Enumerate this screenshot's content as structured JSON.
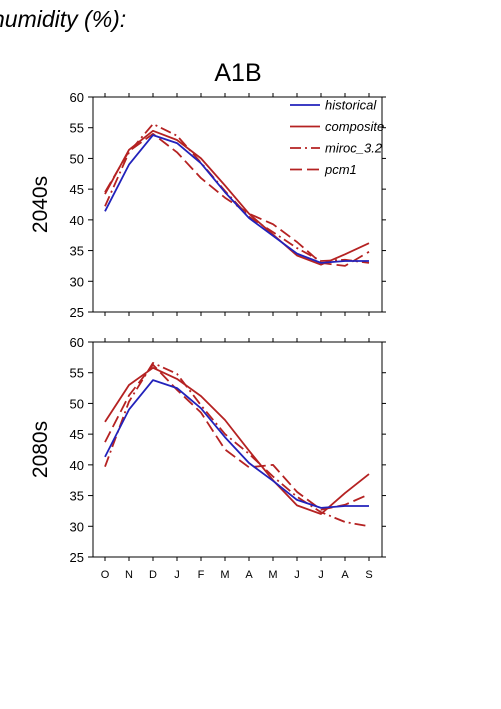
{
  "heading": "humidity (%):",
  "scenario": "A1B",
  "colors": {
    "historical": "#2222bb",
    "model": "#b52222",
    "axis": "#000000"
  },
  "chart_data": [
    {
      "type": "line",
      "panel_label": "2040s",
      "categories": [
        "O",
        "N",
        "D",
        "J",
        "F",
        "M",
        "A",
        "M",
        "J",
        "J",
        "A",
        "S"
      ],
      "ylim": [
        25,
        60
      ],
      "yticks": [
        25,
        30,
        35,
        40,
        45,
        50,
        55,
        60
      ],
      "grid": false,
      "legend": "top-right",
      "series": [
        {
          "name": "historical",
          "dash": "solid",
          "color": "#2222bb",
          "values": [
            41.4,
            49.0,
            53.8,
            52.5,
            49.2,
            44.5,
            40.3,
            37.4,
            34.5,
            33.0,
            33.3,
            33.3
          ]
        },
        {
          "name": "composite",
          "dash": "solid",
          "color": "#b52222",
          "values": [
            44.2,
            51.4,
            54.5,
            53.0,
            50.0,
            45.6,
            41.0,
            37.6,
            34.2,
            32.7,
            34.4,
            36.2
          ]
        },
        {
          "name": "miroc_3.2",
          "dash": "dashdot",
          "color": "#b52222",
          "values": [
            42.2,
            51.0,
            55.6,
            53.7,
            49.3,
            44.7,
            40.5,
            38.0,
            35.4,
            33.3,
            33.5,
            33.0
          ]
        },
        {
          "name": "pcm1",
          "dash": "dash",
          "color": "#b52222",
          "values": [
            44.5,
            51.2,
            54.0,
            51.0,
            46.8,
            43.6,
            41.0,
            39.3,
            36.4,
            33.0,
            32.5,
            34.8
          ]
        }
      ]
    },
    {
      "type": "line",
      "panel_label": "2080s",
      "categories": [
        "O",
        "N",
        "D",
        "J",
        "F",
        "M",
        "A",
        "M",
        "J",
        "J",
        "A",
        "S"
      ],
      "ylim": [
        25,
        60
      ],
      "yticks": [
        25,
        30,
        35,
        40,
        45,
        50,
        55,
        60
      ],
      "grid": false,
      "series": [
        {
          "name": "historical",
          "dash": "solid",
          "color": "#2222bb",
          "values": [
            41.3,
            49.0,
            53.8,
            52.5,
            49.2,
            44.5,
            40.3,
            37.4,
            34.3,
            33.0,
            33.3,
            33.3
          ]
        },
        {
          "name": "composite",
          "dash": "solid",
          "color": "#b52222",
          "values": [
            47.0,
            53.0,
            55.8,
            54.0,
            51.2,
            47.3,
            42.3,
            37.5,
            33.4,
            32.0,
            35.4,
            38.5
          ]
        },
        {
          "name": "miroc_3.2",
          "dash": "dashdot",
          "color": "#b52222",
          "values": [
            39.7,
            50.3,
            56.6,
            54.8,
            49.7,
            45.0,
            41.8,
            38.1,
            34.8,
            32.3,
            30.7,
            30.0
          ]
        },
        {
          "name": "pcm1",
          "dash": "dash",
          "color": "#b52222",
          "values": [
            43.7,
            51.3,
            56.3,
            52.2,
            48.5,
            42.5,
            39.6,
            40.0,
            35.6,
            32.7,
            33.5,
            35.2
          ]
        }
      ]
    }
  ]
}
